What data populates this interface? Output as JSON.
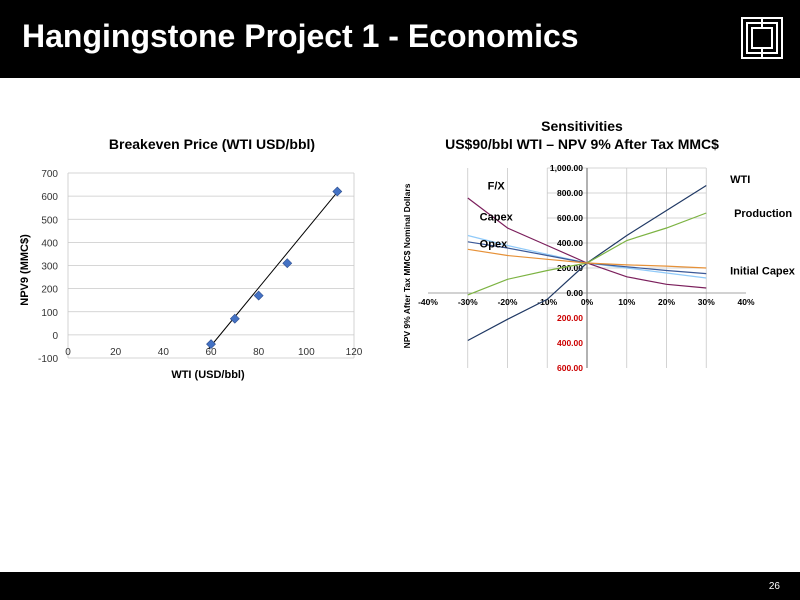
{
  "header": {
    "title": "Hangingstone Project 1 - Economics"
  },
  "footer": {
    "page_number": "26"
  },
  "colors": {
    "header_bg": "#000000",
    "footer_bg": "#000000",
    "accent_red": "#cc0000"
  },
  "icons": {
    "logo": "stacked-squares-logo"
  },
  "chart_data": [
    {
      "type": "scatter",
      "title": "Breakeven Price (WTI USD/bbl)",
      "xlabel": "WTI (USD/bbl)",
      "ylabel": "NPV9 (MMC$)",
      "xlim": [
        0,
        120
      ],
      "ylim": [
        -100,
        700
      ],
      "x_ticks": [
        0,
        20,
        40,
        60,
        80,
        100,
        120
      ],
      "y_ticks": [
        -100,
        0,
        100,
        200,
        300,
        400,
        500,
        600,
        700
      ],
      "grid": true,
      "points": [
        {
          "x": 60,
          "y": -40
        },
        {
          "x": 70,
          "y": 70
        },
        {
          "x": 80,
          "y": 170
        },
        {
          "x": 92,
          "y": 310
        },
        {
          "x": 113,
          "y": 620
        }
      ],
      "trendline": {
        "x": [
          59,
          114
        ],
        "y": [
          -60,
          630
        ]
      },
      "point_color": "#4472c4"
    },
    {
      "type": "line",
      "title": "Sensitivities",
      "subtitle": "US$90/bbl WTI – NPV 9% After Tax MMC$",
      "ylabel": "NPV 9% After Tax MMC$ Nominal Dollars",
      "x_ticks": [
        "-40%",
        "-30%",
        "-20%",
        "-10%",
        "0%",
        "10%",
        "20%",
        "30%",
        "40%"
      ],
      "y_ticks": [
        {
          "value": 1000,
          "label": "1,000.00",
          "negative": false
        },
        {
          "value": 800,
          "label": "800.00",
          "negative": false
        },
        {
          "value": 600,
          "label": "600.00",
          "negative": false
        },
        {
          "value": 400,
          "label": "400.00",
          "negative": false
        },
        {
          "value": 200,
          "label": "200.00",
          "negative": false
        },
        {
          "value": 0,
          "label": "0.00",
          "negative": false
        },
        {
          "value": -200,
          "label": "200.00",
          "negative": true
        },
        {
          "value": -400,
          "label": "400.00",
          "negative": true
        },
        {
          "value": -600,
          "label": "600.00",
          "negative": true
        }
      ],
      "xlim": [
        -40,
        40
      ],
      "ylim": [
        -600,
        1000
      ],
      "x": [
        -30,
        -20,
        -10,
        0,
        10,
        20,
        30
      ],
      "series": [
        {
          "name": "WTI",
          "color": "#1f3864",
          "values": [
            -380,
            -210,
            -50,
            240,
            460,
            660,
            860
          ],
          "label_x": 36,
          "label_y": 880
        },
        {
          "name": "Production",
          "color": "#7cb342",
          "values": [
            -15,
            110,
            180,
            240,
            420,
            520,
            640
          ],
          "label_x": 37,
          "label_y": 610
        },
        {
          "name": "Initial Capex",
          "color": "#90caf9",
          "values": [
            460,
            380,
            310,
            240,
            200,
            160,
            120
          ],
          "label_x": 36,
          "label_y": 150
        },
        {
          "name": "F/X",
          "color": "#7b1f5c",
          "values": [
            760,
            520,
            380,
            240,
            130,
            70,
            40
          ],
          "label_x": -25,
          "label_y": 830
        },
        {
          "name": "Capex",
          "color": "#3b5998",
          "values": [
            410,
            360,
            300,
            240,
            210,
            180,
            155
          ],
          "label_x": -27,
          "label_y": 580
        },
        {
          "name": "Opex",
          "color": "#e69138",
          "values": [
            350,
            300,
            270,
            240,
            225,
            215,
            200
          ],
          "label_x": -27,
          "label_y": 365
        }
      ]
    }
  ]
}
